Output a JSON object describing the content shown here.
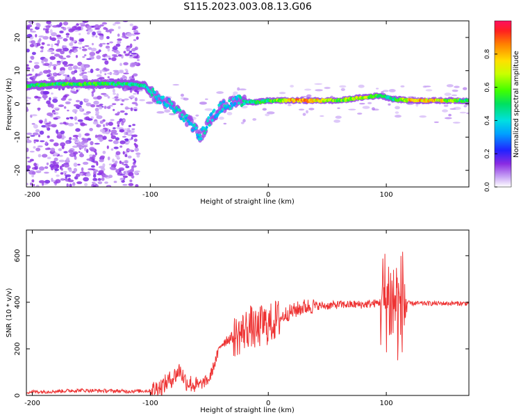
{
  "title": "S115.2023.003.08.13.G06",
  "chart_data": [
    {
      "type": "heatmap",
      "xlabel": "Height of straight line (km)",
      "ylabel": "Frequency (Hz)",
      "xlim": [
        -205,
        170
      ],
      "ylim": [
        -25,
        25
      ],
      "xticks": [
        -200,
        -100,
        0,
        100
      ],
      "yticks": [
        -20,
        -10,
        0,
        10,
        20
      ],
      "colorbar": {
        "label": "Normalized spectral amplitude",
        "ticks": [
          "0.0",
          "0.2",
          "0.4",
          "0.6",
          "0.8"
        ],
        "range": [
          0,
          1
        ]
      },
      "ridge": [
        {
          "x": -200,
          "freq": 5.5,
          "amp": 0.6
        },
        {
          "x": -180,
          "freq": 6.0,
          "amp": 0.6
        },
        {
          "x": -160,
          "freq": 6.0,
          "amp": 0.65
        },
        {
          "x": -140,
          "freq": 6.0,
          "amp": 0.6
        },
        {
          "x": -120,
          "freq": 6.0,
          "amp": 0.55
        },
        {
          "x": -105,
          "freq": 5.5,
          "amp": 0.5
        },
        {
          "x": -95,
          "freq": 2.0,
          "amp": 0.45
        },
        {
          "x": -80,
          "freq": -1.0,
          "amp": 0.45
        },
        {
          "x": -65,
          "freq": -6.0,
          "amp": 0.45
        },
        {
          "x": -58,
          "freq": -10.0,
          "amp": 0.45
        },
        {
          "x": -50,
          "freq": -5.0,
          "amp": 0.45
        },
        {
          "x": -40,
          "freq": -1.0,
          "amp": 0.45
        },
        {
          "x": -25,
          "freq": 1.0,
          "amp": 0.45
        },
        {
          "x": -10,
          "freq": 0.5,
          "amp": 0.6
        },
        {
          "x": 0,
          "freq": 1.0,
          "amp": 0.6
        },
        {
          "x": 20,
          "freq": 1.0,
          "amp": 0.95
        },
        {
          "x": 40,
          "freq": 1.0,
          "amp": 0.9
        },
        {
          "x": 60,
          "freq": 1.0,
          "amp": 0.7
        },
        {
          "x": 80,
          "freq": 2.0,
          "amp": 0.8
        },
        {
          "x": 95,
          "freq": 2.5,
          "amp": 0.6
        },
        {
          "x": 105,
          "freq": 1.5,
          "amp": 0.5
        },
        {
          "x": 120,
          "freq": 1.0,
          "amp": 0.9
        },
        {
          "x": 140,
          "freq": 1.0,
          "amp": 0.9
        },
        {
          "x": 170,
          "freq": 1.0,
          "amp": 0.55
        }
      ]
    },
    {
      "type": "line",
      "xlabel": "Height of straight line (km)",
      "ylabel": "SNR (10 * v/v)",
      "xlim": [
        -205,
        170
      ],
      "ylim": [
        0,
        710
      ],
      "xticks": [
        -200,
        -100,
        0,
        100
      ],
      "yticks": [
        0,
        200,
        400,
        600
      ],
      "color": "#ee3333",
      "series": [
        {
          "x": [
            -205,
            -180,
            -160,
            -140,
            -120,
            -100,
            -90,
            -80,
            -75,
            -70,
            -60,
            -50,
            -40,
            -35,
            -30,
            -25,
            -20,
            -15,
            -10,
            -5,
            0,
            5,
            10,
            15,
            20,
            25,
            30,
            40,
            50,
            60,
            70,
            80,
            90,
            95,
            100,
            103,
            105,
            108,
            110,
            112,
            114,
            116,
            120,
            130,
            140,
            150,
            160,
            170
          ],
          "y": [
            15,
            18,
            22,
            20,
            18,
            20,
            40,
            80,
            110,
            60,
            40,
            70,
            220,
            240,
            250,
            260,
            280,
            300,
            270,
            310,
            300,
            320,
            330,
            350,
            360,
            370,
            380,
            385,
            385,
            390,
            390,
            390,
            395,
            400,
            410,
            420,
            380,
            420,
            350,
            380,
            420,
            400,
            395,
            395,
            395,
            395,
            395,
            395
          ]
        }
      ]
    }
  ]
}
